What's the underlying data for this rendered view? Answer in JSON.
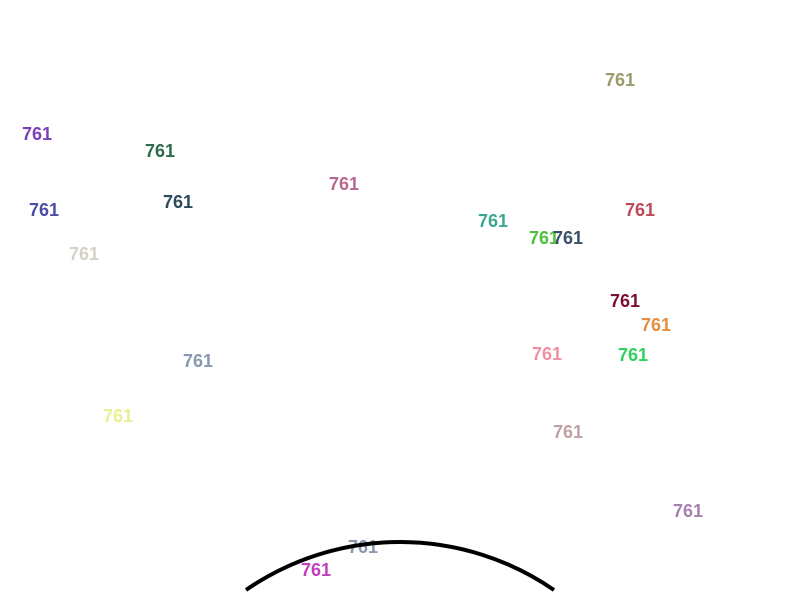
{
  "labels": [
    {
      "text": "761",
      "color": "#9a9a6a"
    },
    {
      "text": "761",
      "color": "#7a3fbf"
    },
    {
      "text": "761",
      "color": "#2e6b4a"
    },
    {
      "text": "761",
      "color": "#b86890"
    },
    {
      "text": "761",
      "color": "#4a4ea8"
    },
    {
      "text": "761",
      "color": "#2d4a5a"
    },
    {
      "text": "761",
      "color": "#d4d2c6"
    },
    {
      "text": "761",
      "color": "#3aa890"
    },
    {
      "text": "761",
      "color": "#4ec03a"
    },
    {
      "text": "761",
      "color": "#3a5068"
    },
    {
      "text": "761",
      "color": "#c04858"
    },
    {
      "text": "761",
      "color": "#7a1030"
    },
    {
      "text": "761",
      "color": "#e09040"
    },
    {
      "text": "761",
      "color": "#f090a0"
    },
    {
      "text": "761",
      "color": "#30d060"
    },
    {
      "text": "761",
      "color": "#8898b0"
    },
    {
      "text": "761",
      "color": "#e8f090"
    },
    {
      "text": "761",
      "color": "#c0a0a0"
    },
    {
      "text": "761",
      "color": "#a880b0"
    },
    {
      "text": "761",
      "color": "#8898b0"
    },
    {
      "text": "761",
      "color": "#c040c0"
    }
  ],
  "circle": {
    "color": "#000000"
  }
}
